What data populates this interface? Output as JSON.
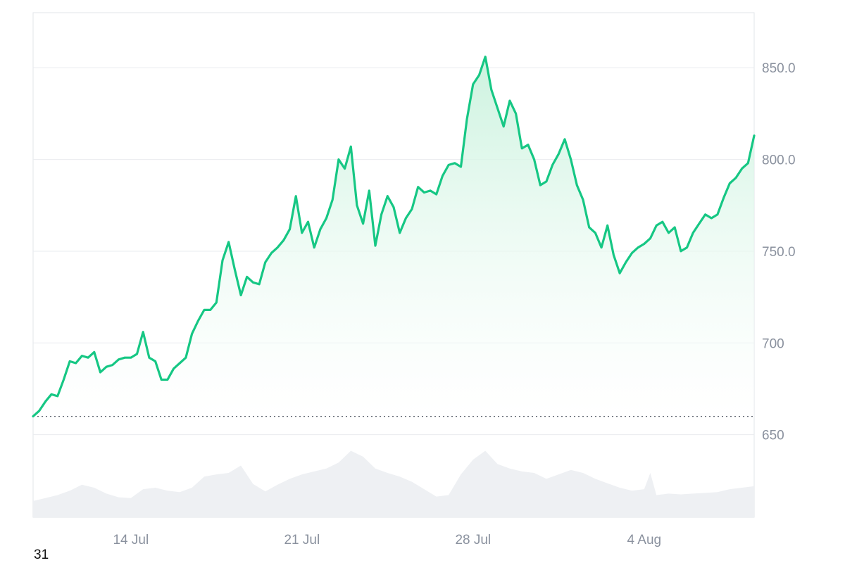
{
  "colors": {
    "line": "#16c784",
    "area_top": "#c9f2dd",
    "volume": "#eef0f3",
    "grid": "#e9ecef",
    "border": "#e2e5ea",
    "baseline": "#555b66",
    "tick_text": "#8a919e"
  },
  "corner_label": "31",
  "chart_data": {
    "type": "area",
    "title": "",
    "xlabel": "",
    "ylabel": "",
    "x_range": [
      "2024-07-10",
      "2024-08-08T12:00"
    ],
    "ylim": [
      605,
      880
    ],
    "y_ticks": [
      650,
      700,
      750,
      800,
      850
    ],
    "y_tick_labels": [
      "650",
      "700",
      "750.0",
      "800.0",
      "850.0"
    ],
    "x_ticks": [
      "2024-07-14",
      "2024-07-21",
      "2024-07-28",
      "2024-08-04"
    ],
    "x_tick_labels": [
      "14 Jul",
      "21 Jul",
      "28 Jul",
      "4 Aug"
    ],
    "grid": true,
    "legend": "none",
    "baseline_value": 660,
    "series": [
      {
        "kind": "price",
        "points": [
          [
            "2024-07-10T00:00",
            660
          ],
          [
            "2024-07-10T06:00",
            663
          ],
          [
            "2024-07-10T12:00",
            668
          ],
          [
            "2024-07-10T18:00",
            672
          ],
          [
            "2024-07-11T00:00",
            671
          ],
          [
            "2024-07-11T06:00",
            680
          ],
          [
            "2024-07-11T12:00",
            690
          ],
          [
            "2024-07-11T18:00",
            689
          ],
          [
            "2024-07-12T00:00",
            693
          ],
          [
            "2024-07-12T06:00",
            692
          ],
          [
            "2024-07-12T12:00",
            695
          ],
          [
            "2024-07-12T18:00",
            684
          ],
          [
            "2024-07-13T00:00",
            687
          ],
          [
            "2024-07-13T06:00",
            688
          ],
          [
            "2024-07-13T12:00",
            691
          ],
          [
            "2024-07-13T18:00",
            692
          ],
          [
            "2024-07-14T00:00",
            692
          ],
          [
            "2024-07-14T06:00",
            694
          ],
          [
            "2024-07-14T12:00",
            706
          ],
          [
            "2024-07-14T18:00",
            692
          ],
          [
            "2024-07-15T00:00",
            690
          ],
          [
            "2024-07-15T06:00",
            680
          ],
          [
            "2024-07-15T12:00",
            680
          ],
          [
            "2024-07-15T18:00",
            686
          ],
          [
            "2024-07-16T00:00",
            689
          ],
          [
            "2024-07-16T06:00",
            692
          ],
          [
            "2024-07-16T12:00",
            705
          ],
          [
            "2024-07-16T18:00",
            712
          ],
          [
            "2024-07-17T00:00",
            718
          ],
          [
            "2024-07-17T06:00",
            718
          ],
          [
            "2024-07-17T12:00",
            722
          ],
          [
            "2024-07-17T18:00",
            745
          ],
          [
            "2024-07-18T00:00",
            755
          ],
          [
            "2024-07-18T06:00",
            740
          ],
          [
            "2024-07-18T12:00",
            726
          ],
          [
            "2024-07-18T18:00",
            736
          ],
          [
            "2024-07-19T00:00",
            733
          ],
          [
            "2024-07-19T06:00",
            732
          ],
          [
            "2024-07-19T12:00",
            744
          ],
          [
            "2024-07-19T18:00",
            749
          ],
          [
            "2024-07-20T00:00",
            752
          ],
          [
            "2024-07-20T06:00",
            756
          ],
          [
            "2024-07-20T12:00",
            762
          ],
          [
            "2024-07-20T18:00",
            780
          ],
          [
            "2024-07-21T00:00",
            760
          ],
          [
            "2024-07-21T06:00",
            766
          ],
          [
            "2024-07-21T12:00",
            752
          ],
          [
            "2024-07-21T18:00",
            762
          ],
          [
            "2024-07-22T00:00",
            768
          ],
          [
            "2024-07-22T06:00",
            778
          ],
          [
            "2024-07-22T12:00",
            800
          ],
          [
            "2024-07-22T18:00",
            795
          ],
          [
            "2024-07-23T00:00",
            807
          ],
          [
            "2024-07-23T06:00",
            775
          ],
          [
            "2024-07-23T12:00",
            765
          ],
          [
            "2024-07-23T18:00",
            783
          ],
          [
            "2024-07-24T00:00",
            753
          ],
          [
            "2024-07-24T06:00",
            770
          ],
          [
            "2024-07-24T12:00",
            780
          ],
          [
            "2024-07-24T18:00",
            774
          ],
          [
            "2024-07-25T00:00",
            760
          ],
          [
            "2024-07-25T06:00",
            768
          ],
          [
            "2024-07-25T12:00",
            773
          ],
          [
            "2024-07-25T18:00",
            785
          ],
          [
            "2024-07-26T00:00",
            782
          ],
          [
            "2024-07-26T06:00",
            783
          ],
          [
            "2024-07-26T12:00",
            781
          ],
          [
            "2024-07-26T18:00",
            791
          ],
          [
            "2024-07-27T00:00",
            797
          ],
          [
            "2024-07-27T06:00",
            798
          ],
          [
            "2024-07-27T12:00",
            796
          ],
          [
            "2024-07-27T18:00",
            822
          ],
          [
            "2024-07-28T00:00",
            841
          ],
          [
            "2024-07-28T06:00",
            846
          ],
          [
            "2024-07-28T12:00",
            856
          ],
          [
            "2024-07-28T18:00",
            838
          ],
          [
            "2024-07-29T00:00",
            828
          ],
          [
            "2024-07-29T06:00",
            818
          ],
          [
            "2024-07-29T12:00",
            832
          ],
          [
            "2024-07-29T18:00",
            825
          ],
          [
            "2024-07-30T00:00",
            806
          ],
          [
            "2024-07-30T06:00",
            808
          ],
          [
            "2024-07-30T12:00",
            800
          ],
          [
            "2024-07-30T18:00",
            786
          ],
          [
            "2024-07-31T00:00",
            788
          ],
          [
            "2024-07-31T06:00",
            797
          ],
          [
            "2024-07-31T12:00",
            803
          ],
          [
            "2024-07-31T18:00",
            811
          ],
          [
            "2024-08-01T00:00",
            800
          ],
          [
            "2024-08-01T06:00",
            786
          ],
          [
            "2024-08-01T12:00",
            778
          ],
          [
            "2024-08-01T18:00",
            763
          ],
          [
            "2024-08-02T00:00",
            760
          ],
          [
            "2024-08-02T06:00",
            752
          ],
          [
            "2024-08-02T12:00",
            764
          ],
          [
            "2024-08-02T18:00",
            748
          ],
          [
            "2024-08-03T00:00",
            738
          ],
          [
            "2024-08-03T06:00",
            744
          ],
          [
            "2024-08-03T12:00",
            749
          ],
          [
            "2024-08-03T18:00",
            752
          ],
          [
            "2024-08-04T00:00",
            754
          ],
          [
            "2024-08-04T06:00",
            757
          ],
          [
            "2024-08-04T12:00",
            764
          ],
          [
            "2024-08-04T18:00",
            766
          ],
          [
            "2024-08-05T00:00",
            760
          ],
          [
            "2024-08-05T06:00",
            763
          ],
          [
            "2024-08-05T12:00",
            750
          ],
          [
            "2024-08-05T18:00",
            752
          ],
          [
            "2024-08-06T00:00",
            760
          ],
          [
            "2024-08-06T06:00",
            765
          ],
          [
            "2024-08-06T12:00",
            770
          ],
          [
            "2024-08-06T18:00",
            768
          ],
          [
            "2024-08-07T00:00",
            770
          ],
          [
            "2024-08-07T06:00",
            779
          ],
          [
            "2024-08-07T12:00",
            787
          ],
          [
            "2024-08-07T18:00",
            790
          ],
          [
            "2024-08-08T00:00",
            795
          ],
          [
            "2024-08-08T06:00",
            798
          ],
          [
            "2024-08-08T12:00",
            813
          ]
        ]
      },
      {
        "kind": "volume",
        "points": [
          [
            "2024-07-10T00:00",
            0.22
          ],
          [
            "2024-07-10T12:00",
            0.26
          ],
          [
            "2024-07-11T00:00",
            0.3
          ],
          [
            "2024-07-11T12:00",
            0.36
          ],
          [
            "2024-07-12T00:00",
            0.44
          ],
          [
            "2024-07-12T12:00",
            0.4
          ],
          [
            "2024-07-13T00:00",
            0.32
          ],
          [
            "2024-07-13T12:00",
            0.27
          ],
          [
            "2024-07-14T00:00",
            0.26
          ],
          [
            "2024-07-14T12:00",
            0.38
          ],
          [
            "2024-07-15T00:00",
            0.4
          ],
          [
            "2024-07-15T12:00",
            0.36
          ],
          [
            "2024-07-16T00:00",
            0.34
          ],
          [
            "2024-07-16T12:00",
            0.4
          ],
          [
            "2024-07-17T00:00",
            0.55
          ],
          [
            "2024-07-17T12:00",
            0.58
          ],
          [
            "2024-07-18T00:00",
            0.6
          ],
          [
            "2024-07-18T12:00",
            0.7
          ],
          [
            "2024-07-19T00:00",
            0.45
          ],
          [
            "2024-07-19T12:00",
            0.35
          ],
          [
            "2024-07-20T00:00",
            0.44
          ],
          [
            "2024-07-20T12:00",
            0.52
          ],
          [
            "2024-07-21T00:00",
            0.58
          ],
          [
            "2024-07-21T12:00",
            0.62
          ],
          [
            "2024-07-22T00:00",
            0.66
          ],
          [
            "2024-07-22T12:00",
            0.74
          ],
          [
            "2024-07-23T00:00",
            0.9
          ],
          [
            "2024-07-23T12:00",
            0.82
          ],
          [
            "2024-07-24T00:00",
            0.66
          ],
          [
            "2024-07-24T12:00",
            0.6
          ],
          [
            "2024-07-25T00:00",
            0.55
          ],
          [
            "2024-07-25T12:00",
            0.48
          ],
          [
            "2024-07-26T00:00",
            0.38
          ],
          [
            "2024-07-26T12:00",
            0.28
          ],
          [
            "2024-07-27T00:00",
            0.3
          ],
          [
            "2024-07-27T12:00",
            0.58
          ],
          [
            "2024-07-28T00:00",
            0.78
          ],
          [
            "2024-07-28T12:00",
            0.9
          ],
          [
            "2024-07-29T00:00",
            0.72
          ],
          [
            "2024-07-29T12:00",
            0.66
          ],
          [
            "2024-07-30T00:00",
            0.62
          ],
          [
            "2024-07-30T12:00",
            0.6
          ],
          [
            "2024-07-31T00:00",
            0.52
          ],
          [
            "2024-07-31T12:00",
            0.58
          ],
          [
            "2024-08-01T00:00",
            0.64
          ],
          [
            "2024-08-01T12:00",
            0.6
          ],
          [
            "2024-08-02T00:00",
            0.52
          ],
          [
            "2024-08-02T12:00",
            0.46
          ],
          [
            "2024-08-03T00:00",
            0.4
          ],
          [
            "2024-08-03T12:00",
            0.36
          ],
          [
            "2024-08-04T00:00",
            0.38
          ],
          [
            "2024-08-04T06:00",
            0.6
          ],
          [
            "2024-08-04T12:00",
            0.3
          ],
          [
            "2024-08-05T00:00",
            0.32
          ],
          [
            "2024-08-05T12:00",
            0.31
          ],
          [
            "2024-08-06T00:00",
            0.32
          ],
          [
            "2024-08-06T12:00",
            0.33
          ],
          [
            "2024-08-07T00:00",
            0.34
          ],
          [
            "2024-08-07T12:00",
            0.38
          ],
          [
            "2024-08-08T00:00",
            0.4
          ],
          [
            "2024-08-08T12:00",
            0.42
          ]
        ]
      }
    ]
  }
}
